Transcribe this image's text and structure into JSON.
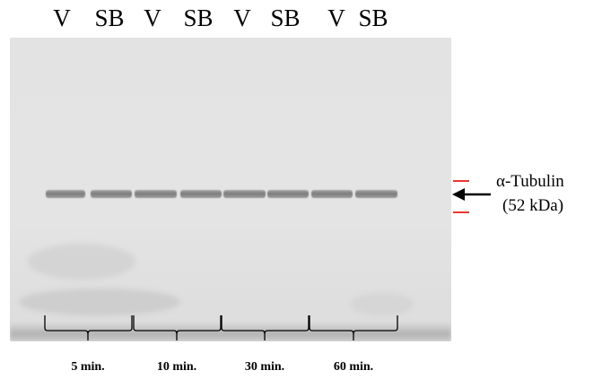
{
  "lane_labels": [
    "V",
    "SB",
    "V",
    "SB",
    "V",
    "SB",
    "V",
    "SB"
  ],
  "time_points": [
    "5 min.",
    "10 min.",
    "30 min.",
    "60 min."
  ],
  "band_label": {
    "name": "α-Tubulin",
    "size": "(52 kDa)"
  },
  "colors": {
    "marker_lines": "#e8392f",
    "band": "#7d7d7d",
    "gel_background": "#e3e3e3"
  },
  "icons": {
    "band_pointer": "arrow-left-icon"
  }
}
